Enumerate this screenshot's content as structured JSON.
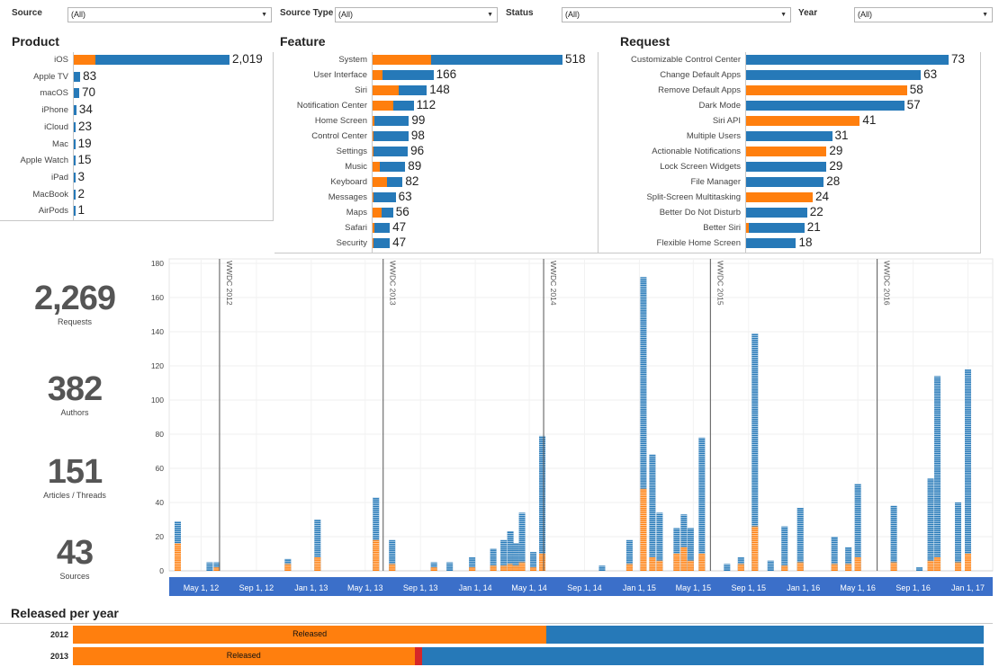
{
  "filters": [
    {
      "label": "Source",
      "value": "(All)"
    },
    {
      "label": "Source Type",
      "value": "(All)"
    },
    {
      "label": "Status",
      "value": "(All)"
    },
    {
      "label": "Year",
      "value": "(All)"
    }
  ],
  "colors": {
    "released": "#ff7f0e",
    "other": "#2679b8",
    "accent": "#3b6fc9",
    "divider_red": "#d62728"
  },
  "product": {
    "title": "Product",
    "rows": [
      {
        "label": "iOS",
        "value": "2,019",
        "total": 2019,
        "released": 280
      },
      {
        "label": "Apple TV",
        "value": "83",
        "total": 83,
        "released": 0
      },
      {
        "label": "macOS",
        "value": "70",
        "total": 70,
        "released": 0
      },
      {
        "label": "iPhone",
        "value": "34",
        "total": 34,
        "released": 0
      },
      {
        "label": "iCloud",
        "value": "23",
        "total": 23,
        "released": 0
      },
      {
        "label": "Mac",
        "value": "19",
        "total": 19,
        "released": 0
      },
      {
        "label": "Apple Watch",
        "value": "15",
        "total": 15,
        "released": 0
      },
      {
        "label": "iPad",
        "value": "3",
        "total": 3,
        "released": 0
      },
      {
        "label": "MacBook",
        "value": "2",
        "total": 2,
        "released": 0
      },
      {
        "label": "AirPods",
        "value": "1",
        "total": 1,
        "released": 0
      }
    ]
  },
  "feature": {
    "title": "Feature",
    "rows": [
      {
        "label": "System",
        "value": "518",
        "total": 518,
        "released": 160
      },
      {
        "label": "User Interface",
        "value": "166",
        "total": 166,
        "released": 26
      },
      {
        "label": "Siri",
        "value": "148",
        "total": 148,
        "released": 72
      },
      {
        "label": "Notification Center",
        "value": "112",
        "total": 112,
        "released": 57
      },
      {
        "label": "Home Screen",
        "value": "99",
        "total": 99,
        "released": 5
      },
      {
        "label": "Control Center",
        "value": "98",
        "total": 98,
        "released": 2
      },
      {
        "label": "Settings",
        "value": "96",
        "total": 96,
        "released": 2
      },
      {
        "label": "Music",
        "value": "89",
        "total": 89,
        "released": 19
      },
      {
        "label": "Keyboard",
        "value": "82",
        "total": 82,
        "released": 40
      },
      {
        "label": "Messages",
        "value": "63",
        "total": 63,
        "released": 2
      },
      {
        "label": "Maps",
        "value": "56",
        "total": 56,
        "released": 25
      },
      {
        "label": "Safari",
        "value": "47",
        "total": 47,
        "released": 5
      },
      {
        "label": "Security",
        "value": "47",
        "total": 47,
        "released": 2
      }
    ]
  },
  "request": {
    "title": "Request",
    "rows": [
      {
        "label": "Customizable Control Center",
        "value": "73",
        "total": 73,
        "released": 0
      },
      {
        "label": "Change Default Apps",
        "value": "63",
        "total": 63,
        "released": 0
      },
      {
        "label": "Remove Default Apps",
        "value": "58",
        "total": 58,
        "released": 58
      },
      {
        "label": "Dark Mode",
        "value": "57",
        "total": 57,
        "released": 0
      },
      {
        "label": "Siri API",
        "value": "41",
        "total": 41,
        "released": 41
      },
      {
        "label": "Multiple Users",
        "value": "31",
        "total": 31,
        "released": 0
      },
      {
        "label": "Actionable Notifications",
        "value": "29",
        "total": 29,
        "released": 29
      },
      {
        "label": "Lock Screen Widgets",
        "value": "29",
        "total": 29,
        "released": 0
      },
      {
        "label": "File Manager",
        "value": "28",
        "total": 28,
        "released": 0
      },
      {
        "label": "Split-Screen Multitasking",
        "value": "24",
        "total": 24,
        "released": 24
      },
      {
        "label": "Better Do Not Disturb",
        "value": "22",
        "total": 22,
        "released": 0
      },
      {
        "label": "Better Siri",
        "value": "21",
        "total": 21,
        "released": 1
      },
      {
        "label": "Flexible Home Screen",
        "value": "18",
        "total": 18,
        "released": 0
      }
    ]
  },
  "kpis": [
    {
      "value": "2,269",
      "label": "Requests"
    },
    {
      "value": "382",
      "label": "Authors"
    },
    {
      "value": "151",
      "label": "Articles / Threads"
    },
    {
      "value": "43",
      "label": "Sources"
    }
  ],
  "chart_data": {
    "type": "bar",
    "y_ticks": [
      "0",
      "20",
      "40",
      "60",
      "80",
      "100",
      "120",
      "140",
      "160",
      "180"
    ],
    "ylim": [
      0,
      180
    ],
    "x_ticks": [
      "May 1, 12",
      "Sep 1, 12",
      "Jan 1, 13",
      "May 1, 13",
      "Sep 1, 13",
      "Jan 1, 14",
      "May 1, 14",
      "Sep 1, 14",
      "Jan 1, 15",
      "May 1, 15",
      "Sep 1, 15",
      "Jan 1, 16",
      "May 1, 16",
      "Sep 1, 16",
      "Jan 1, 17"
    ],
    "events": [
      {
        "label": "WWDC 2012",
        "date": "2012-06-11"
      },
      {
        "label": "WWDC 2013",
        "date": "2013-06-10"
      },
      {
        "label": "WWDC 2014",
        "date": "2014-06-02"
      },
      {
        "label": "WWDC 2015",
        "date": "2015-06-08"
      },
      {
        "label": "WWDC 2016",
        "date": "2016-06-13"
      }
    ],
    "bars": [
      {
        "date": "2012-03-10",
        "total": 29,
        "released": 16
      },
      {
        "date": "2012-05-20",
        "total": 5,
        "released": 0
      },
      {
        "date": "2012-06-05",
        "total": 5,
        "released": 2
      },
      {
        "date": "2012-11-10",
        "total": 7,
        "released": 4
      },
      {
        "date": "2013-01-15",
        "total": 30,
        "released": 8
      },
      {
        "date": "2013-05-25",
        "total": 43,
        "released": 18
      },
      {
        "date": "2013-06-30",
        "total": 18,
        "released": 4
      },
      {
        "date": "2013-10-01",
        "total": 5,
        "released": 2
      },
      {
        "date": "2013-11-05",
        "total": 5,
        "released": 0
      },
      {
        "date": "2013-12-25",
        "total": 8,
        "released": 2
      },
      {
        "date": "2014-02-10",
        "total": 13,
        "released": 3
      },
      {
        "date": "2014-03-05",
        "total": 18,
        "released": 3
      },
      {
        "date": "2014-03-20",
        "total": 23,
        "released": 4
      },
      {
        "date": "2014-04-01",
        "total": 16,
        "released": 3
      },
      {
        "date": "2014-04-15",
        "total": 34,
        "released": 5
      },
      {
        "date": "2014-05-10",
        "total": 11,
        "released": 2
      },
      {
        "date": "2014-05-30",
        "total": 79,
        "released": 10
      },
      {
        "date": "2014-10-10",
        "total": 3,
        "released": 0
      },
      {
        "date": "2014-12-10",
        "total": 18,
        "released": 4
      },
      {
        "date": "2015-01-10",
        "total": 172,
        "released": 48
      },
      {
        "date": "2015-01-30",
        "total": 68,
        "released": 8
      },
      {
        "date": "2015-02-15",
        "total": 34,
        "released": 6
      },
      {
        "date": "2015-03-25",
        "total": 25,
        "released": 10
      },
      {
        "date": "2015-04-10",
        "total": 33,
        "released": 14
      },
      {
        "date": "2015-04-25",
        "total": 25,
        "released": 6
      },
      {
        "date": "2015-05-20",
        "total": 78,
        "released": 10
      },
      {
        "date": "2015-07-15",
        "total": 4,
        "released": 0
      },
      {
        "date": "2015-08-15",
        "total": 8,
        "released": 4
      },
      {
        "date": "2015-09-15",
        "total": 139,
        "released": 26
      },
      {
        "date": "2015-10-20",
        "total": 6,
        "released": 0
      },
      {
        "date": "2015-11-20",
        "total": 26,
        "released": 3
      },
      {
        "date": "2015-12-25",
        "total": 37,
        "released": 5
      },
      {
        "date": "2016-03-10",
        "total": 20,
        "released": 4
      },
      {
        "date": "2016-04-10",
        "total": 14,
        "released": 4
      },
      {
        "date": "2016-05-01",
        "total": 51,
        "released": 8
      },
      {
        "date": "2016-07-20",
        "total": 38,
        "released": 5
      },
      {
        "date": "2016-09-15",
        "total": 2,
        "released": 0
      },
      {
        "date": "2016-10-10",
        "total": 54,
        "released": 6
      },
      {
        "date": "2016-10-25",
        "total": 114,
        "released": 8
      },
      {
        "date": "2016-12-10",
        "total": 40,
        "released": 5
      },
      {
        "date": "2017-01-01",
        "total": 118,
        "released": 10
      }
    ]
  },
  "released_per_year": {
    "title": "Released per year",
    "rows": [
      {
        "year": "2012",
        "released_label": "Released",
        "released_share": 0.52,
        "red_share": 0.0
      },
      {
        "year": "2013",
        "released_label": "Released",
        "released_share": 0.375,
        "red_share": 0.008
      }
    ]
  }
}
